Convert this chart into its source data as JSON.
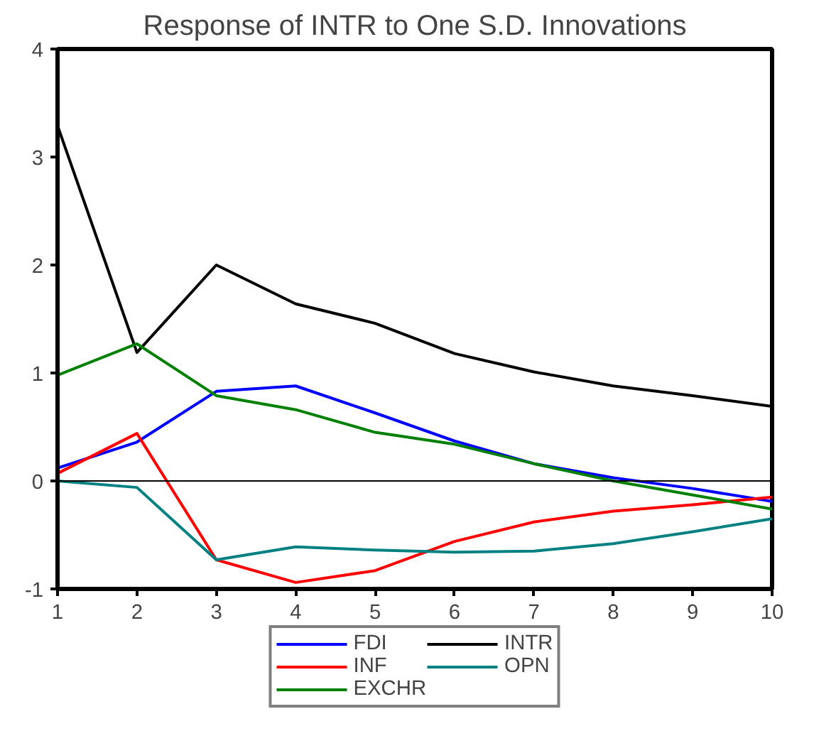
{
  "chart_data": {
    "type": "line",
    "title": "Response of INTR to One S.D. Innovations",
    "x": [
      1,
      2,
      3,
      4,
      5,
      6,
      7,
      8,
      9,
      10
    ],
    "xlim": [
      1,
      10
    ],
    "xticks": [
      1,
      2,
      3,
      4,
      5,
      6,
      7,
      8,
      9,
      10
    ],
    "ylim": [
      -1,
      4
    ],
    "yticks": [
      -1,
      0,
      1,
      2,
      3,
      4
    ],
    "grid": false,
    "legend": "bottom",
    "marker": "none",
    "line_style": "solid",
    "ref_lines": [
      {
        "axis": "y",
        "value": 0,
        "color": "#000000",
        "line_style": "solid"
      }
    ],
    "series": [
      {
        "name": "FDI",
        "color": "#0000ff",
        "values": [
          0.12,
          0.36,
          0.83,
          0.88,
          0.63,
          0.37,
          0.16,
          0.03,
          -0.07,
          -0.19
        ]
      },
      {
        "name": "INTR",
        "color": "#000000",
        "values": [
          3.29,
          1.19,
          2.0,
          1.64,
          1.46,
          1.18,
          1.01,
          0.88,
          0.79,
          0.69
        ]
      },
      {
        "name": "INF",
        "color": "#ff0000",
        "values": [
          0.07,
          0.44,
          -0.73,
          -0.94,
          -0.83,
          -0.56,
          -0.38,
          -0.28,
          -0.22,
          -0.15
        ]
      },
      {
        "name": "OPN",
        "color": "#008080",
        "values": [
          0.0,
          -0.06,
          -0.73,
          -0.61,
          -0.64,
          -0.66,
          -0.65,
          -0.58,
          -0.47,
          -0.35
        ]
      },
      {
        "name": "EXCHR",
        "color": "#008000",
        "values": [
          0.98,
          1.27,
          0.79,
          0.66,
          0.45,
          0.34,
          0.16,
          0.0,
          -0.13,
          -0.26
        ]
      }
    ]
  }
}
